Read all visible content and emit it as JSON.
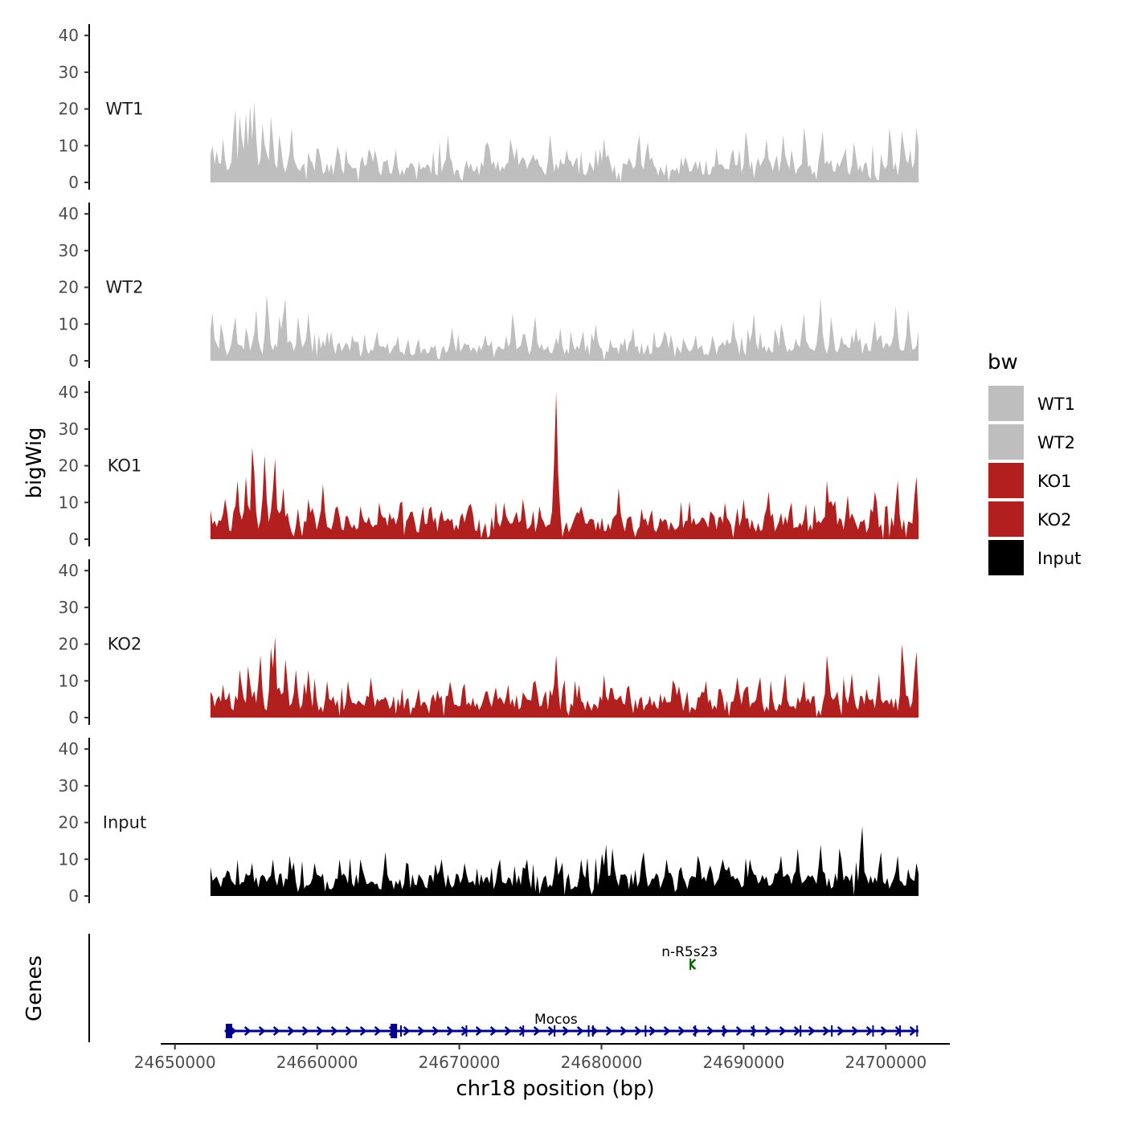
{
  "chart_data": {
    "type": "area",
    "ylabel": "bigWig",
    "genes_label": "Genes",
    "xlabel": "chr18 position (bp)",
    "x_ticks": [
      "24650000",
      "24660000",
      "24670000",
      "24680000",
      "24690000",
      "24700000"
    ],
    "x_tick_values": [
      24650000,
      24660000,
      24670000,
      24680000,
      24690000,
      24700000
    ],
    "xlim": [
      24649000,
      24704500
    ],
    "signal_range": [
      24652500,
      24702300
    ],
    "ylim": [
      0,
      42
    ],
    "y_ticks": [
      "0",
      "10",
      "20",
      "30",
      "40"
    ],
    "y_tick_values": [
      0,
      10,
      20,
      30,
      40
    ],
    "tracks": [
      {
        "name": "WT1",
        "color": "#bebebe",
        "peaks": [
          [
            24652600,
            10
          ],
          [
            24653400,
            12
          ],
          [
            24654200,
            20
          ],
          [
            24654600,
            18
          ],
          [
            24655000,
            19
          ],
          [
            24655300,
            21
          ],
          [
            24655600,
            22
          ],
          [
            24656200,
            16
          ],
          [
            24656800,
            18
          ],
          [
            24657400,
            13
          ],
          [
            24658200,
            15
          ],
          [
            24660100,
            9
          ],
          [
            24661500,
            10
          ],
          [
            24663800,
            8
          ],
          [
            24665500,
            9
          ],
          [
            24667800,
            5
          ],
          [
            24669200,
            13
          ],
          [
            24672000,
            11
          ],
          [
            24673600,
            12
          ],
          [
            24676400,
            13
          ],
          [
            24677600,
            9
          ],
          [
            24680200,
            12
          ],
          [
            24682600,
            13
          ],
          [
            24683200,
            11
          ],
          [
            24685900,
            7
          ],
          [
            24689200,
            9
          ],
          [
            24690200,
            14
          ],
          [
            24691600,
            12
          ],
          [
            24692800,
            13
          ],
          [
            24694300,
            15
          ],
          [
            24695500,
            14
          ],
          [
            24697800,
            11
          ],
          [
            24700300,
            15
          ],
          [
            24701200,
            14
          ],
          [
            24702200,
            15
          ]
        ],
        "base": 5
      },
      {
        "name": "WT2",
        "color": "#bebebe",
        "peaks": [
          [
            24652600,
            13
          ],
          [
            24653300,
            10
          ],
          [
            24654200,
            12
          ],
          [
            24655700,
            14
          ],
          [
            24656500,
            18
          ],
          [
            24657400,
            12
          ],
          [
            24657700,
            17
          ],
          [
            24658700,
            12
          ],
          [
            24659400,
            13
          ],
          [
            24660700,
            8
          ],
          [
            24662500,
            7
          ],
          [
            24664200,
            8
          ],
          [
            24667100,
            6
          ],
          [
            24669500,
            9
          ],
          [
            24671800,
            7
          ],
          [
            24673800,
            13
          ],
          [
            24675300,
            12
          ],
          [
            24677100,
            9
          ],
          [
            24679600,
            10
          ],
          [
            24682200,
            9
          ],
          [
            24684400,
            8
          ],
          [
            24686600,
            7
          ],
          [
            24689300,
            11
          ],
          [
            24690700,
            13
          ],
          [
            24692700,
            10
          ],
          [
            24694200,
            13
          ],
          [
            24695400,
            17
          ],
          [
            24696200,
            12
          ],
          [
            24697900,
            9
          ],
          [
            24699200,
            11
          ],
          [
            24700700,
            15
          ],
          [
            24701600,
            14
          ]
        ],
        "base": 4
      },
      {
        "name": "KO1",
        "color": "#b21f1f",
        "peaks": [
          [
            24652500,
            8
          ],
          [
            24653500,
            11
          ],
          [
            24654400,
            16
          ],
          [
            24655000,
            17
          ],
          [
            24655500,
            25
          ],
          [
            24656300,
            23
          ],
          [
            24657000,
            22
          ],
          [
            24657600,
            14
          ],
          [
            24659400,
            11
          ],
          [
            24660400,
            15
          ],
          [
            24661500,
            9
          ],
          [
            24663100,
            9
          ],
          [
            24664400,
            10
          ],
          [
            24667400,
            9
          ],
          [
            24668800,
            8
          ],
          [
            24670600,
            9
          ],
          [
            24673200,
            10
          ],
          [
            24674500,
            11
          ],
          [
            24675700,
            9
          ],
          [
            24676800,
            40
          ],
          [
            24678500,
            9
          ],
          [
            24681200,
            14
          ],
          [
            24683500,
            8
          ],
          [
            24686100,
            5
          ],
          [
            24688700,
            10
          ],
          [
            24690000,
            11
          ],
          [
            24691700,
            13
          ],
          [
            24693300,
            10
          ],
          [
            24695900,
            16
          ],
          [
            24697300,
            12
          ],
          [
            24699200,
            13
          ],
          [
            24700800,
            16
          ],
          [
            24702100,
            17
          ]
        ],
        "base": 5
      },
      {
        "name": "KO2",
        "color": "#b21f1f",
        "peaks": [
          [
            24652500,
            7
          ],
          [
            24653400,
            9
          ],
          [
            24654600,
            13
          ],
          [
            24655200,
            14
          ],
          [
            24656000,
            17
          ],
          [
            24656800,
            19
          ],
          [
            24657000,
            22
          ],
          [
            24657800,
            16
          ],
          [
            24658500,
            13
          ],
          [
            24659400,
            13
          ],
          [
            24660700,
            10
          ],
          [
            24662200,
            10
          ],
          [
            24663800,
            11
          ],
          [
            24667100,
            8
          ],
          [
            24669500,
            7
          ],
          [
            24671800,
            7
          ],
          [
            24673400,
            9
          ],
          [
            24675400,
            10
          ],
          [
            24676800,
            17
          ],
          [
            24678400,
            9
          ],
          [
            24680800,
            8
          ],
          [
            24681800,
            8
          ],
          [
            24683400,
            6
          ],
          [
            24685100,
            9
          ],
          [
            24687300,
            10
          ],
          [
            24689600,
            11
          ],
          [
            24691100,
            11
          ],
          [
            24692900,
            12
          ],
          [
            24694200,
            10
          ],
          [
            24695900,
            17
          ],
          [
            24697600,
            12
          ],
          [
            24699500,
            12
          ],
          [
            24701200,
            20
          ],
          [
            24702100,
            18
          ]
        ],
        "base": 5
      },
      {
        "name": "Input",
        "color": "#000000",
        "peaks": [
          [
            24652500,
            8
          ],
          [
            24653700,
            7
          ],
          [
            24655400,
            9
          ],
          [
            24656900,
            10
          ],
          [
            24658100,
            11
          ],
          [
            24659800,
            9
          ],
          [
            24661600,
            10
          ],
          [
            24663100,
            10
          ],
          [
            24664800,
            12
          ],
          [
            24666300,
            9
          ],
          [
            24668700,
            10
          ],
          [
            24670400,
            9
          ],
          [
            24672800,
            10
          ],
          [
            24674700,
            10
          ],
          [
            24676800,
            11
          ],
          [
            24678600,
            10
          ],
          [
            24680300,
            14
          ],
          [
            24680800,
            13
          ],
          [
            24682900,
            12
          ],
          [
            24684600,
            10
          ],
          [
            24686800,
            11
          ],
          [
            24688600,
            10
          ],
          [
            24690500,
            10
          ],
          [
            24692600,
            11
          ],
          [
            24693800,
            13
          ],
          [
            24695400,
            14
          ],
          [
            24696800,
            13
          ],
          [
            24698300,
            19
          ],
          [
            24699600,
            12
          ],
          [
            24700800,
            11
          ],
          [
            24702200,
            9
          ]
        ],
        "base": 5
      }
    ],
    "legend": {
      "title": "bw",
      "items": [
        {
          "label": "WT1",
          "color": "#bebebe"
        },
        {
          "label": "WT2",
          "color": "#bebebe"
        },
        {
          "label": "KO1",
          "color": "#b21f1f"
        },
        {
          "label": "KO2",
          "color": "#b21f1f"
        },
        {
          "label": "Input",
          "color": "#000000"
        }
      ]
    },
    "genes": [
      {
        "name": "Mocos",
        "start": 24653500,
        "end": 24702300,
        "strand": "+",
        "color": "#00008b",
        "exons": [
          24653800,
          24665400,
          24665900,
          24670500,
          24674500,
          24676700,
          24679100,
          24679400,
          24683100,
          24686600,
          24688600,
          24690700,
          24694000,
          24696200,
          24699100,
          24701000,
          24702200
        ]
      },
      {
        "name": "n-R5s23",
        "start": 24686200,
        "end": 24686500,
        "strand": "-",
        "color": "#006400",
        "exons": []
      }
    ]
  }
}
